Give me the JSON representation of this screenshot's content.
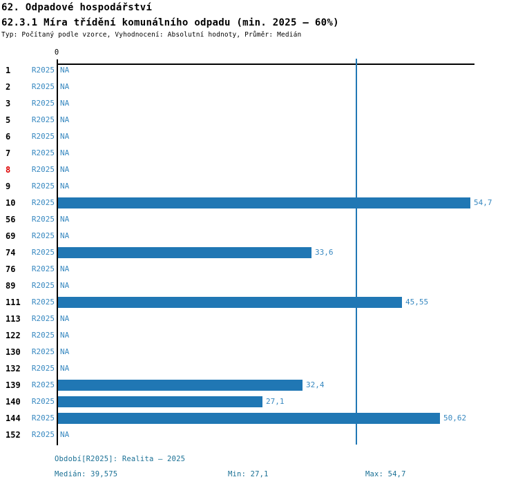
{
  "header": {
    "title1": "62. Odpadové hospodářství",
    "title2": "62.3.1 Míra třídění komunálního odpadu (min. 2025 – 60%)",
    "subtitle": "Typ: Počítaný podle vzorce, Vyhodnocení: Absolutní hodnoty, Průměr: Medián"
  },
  "chart_data": {
    "type": "bar",
    "orientation": "horizontal",
    "title": "62.3.1 Míra třídění komunálního odpadu (min. 2025 – 60%)",
    "period_label": "R2025",
    "na_label": "NA",
    "x_axis": {
      "min": 0,
      "max": 55.3,
      "tick_labels": [
        "0"
      ]
    },
    "median_value": 39.575,
    "categories": [
      "1",
      "2",
      "3",
      "5",
      "6",
      "7",
      "8",
      "9",
      "10",
      "56",
      "69",
      "74",
      "76",
      "89",
      "111",
      "113",
      "122",
      "130",
      "132",
      "139",
      "140",
      "144",
      "152"
    ],
    "rows": [
      {
        "id": "1",
        "period": "R2025",
        "value": null
      },
      {
        "id": "2",
        "period": "R2025",
        "value": null
      },
      {
        "id": "3",
        "period": "R2025",
        "value": null
      },
      {
        "id": "5",
        "period": "R2025",
        "value": null
      },
      {
        "id": "6",
        "period": "R2025",
        "value": null
      },
      {
        "id": "7",
        "period": "R2025",
        "value": null
      },
      {
        "id": "8",
        "period": "R2025",
        "value": null,
        "highlight": true
      },
      {
        "id": "9",
        "period": "R2025",
        "value": null
      },
      {
        "id": "10",
        "period": "R2025",
        "value": 54.7,
        "label": "54,7"
      },
      {
        "id": "56",
        "period": "R2025",
        "value": null
      },
      {
        "id": "69",
        "period": "R2025",
        "value": null
      },
      {
        "id": "74",
        "period": "R2025",
        "value": 33.6,
        "label": "33,6"
      },
      {
        "id": "76",
        "period": "R2025",
        "value": null
      },
      {
        "id": "89",
        "period": "R2025",
        "value": null
      },
      {
        "id": "111",
        "period": "R2025",
        "value": 45.55,
        "label": "45,55"
      },
      {
        "id": "113",
        "period": "R2025",
        "value": null
      },
      {
        "id": "122",
        "period": "R2025",
        "value": null
      },
      {
        "id": "130",
        "period": "R2025",
        "value": null
      },
      {
        "id": "132",
        "period": "R2025",
        "value": null
      },
      {
        "id": "139",
        "period": "R2025",
        "value": 32.4,
        "label": "32,4"
      },
      {
        "id": "140",
        "period": "R2025",
        "value": 27.1,
        "label": "27,1"
      },
      {
        "id": "144",
        "period": "R2025",
        "value": 50.62,
        "label": "50,62"
      },
      {
        "id": "152",
        "period": "R2025",
        "value": null
      }
    ],
    "colors": {
      "bar": "#2077b4",
      "median_line": "#2077b4",
      "row_label_blue": "#3788c0",
      "row_id": "#000000",
      "row_id_highlight": "#dd0000",
      "footer_text": "#1a7095",
      "axis": "#000000"
    }
  },
  "footer": {
    "period": "Období[R2025]: Realita – 2025",
    "median": "Medián: 39,575",
    "min": "Min: 27,1",
    "max": "Max: 54,7"
  }
}
